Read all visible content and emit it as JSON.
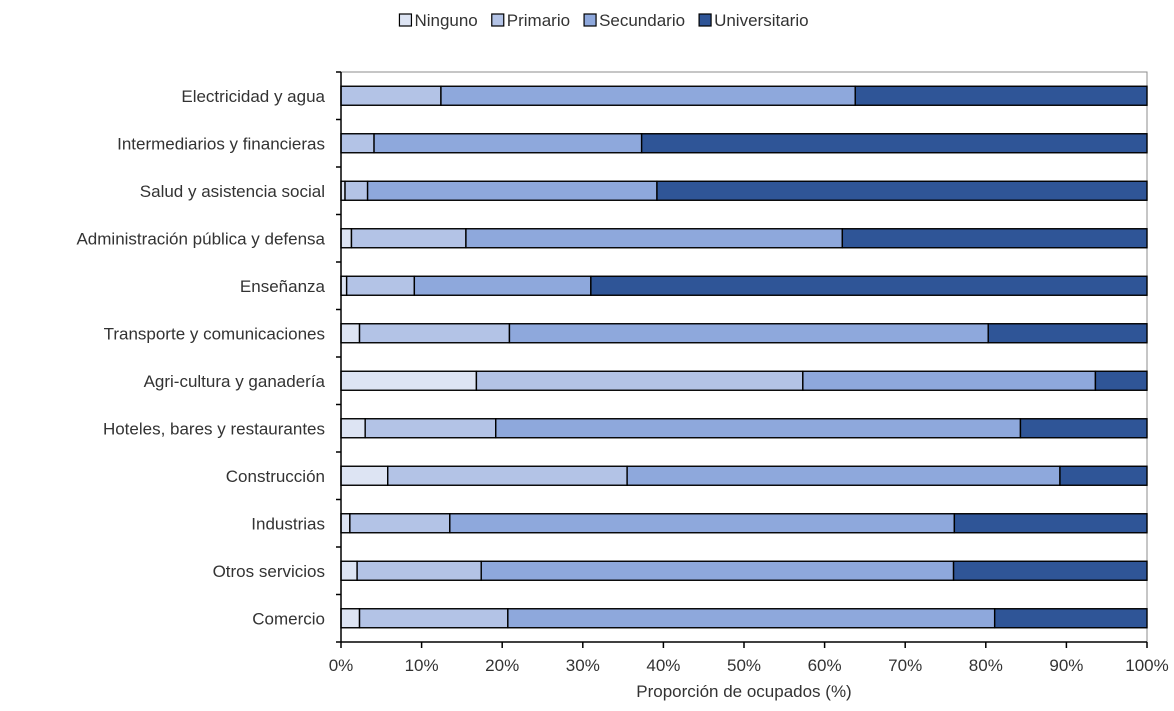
{
  "chart_data": {
    "type": "bar",
    "orientation": "horizontal",
    "stacked": "percent",
    "title": "",
    "xlabel": "Proporción de ocupados (%)",
    "ylabel": "",
    "xlim": [
      0,
      100
    ],
    "xticks": [
      "0%",
      "10%",
      "20%",
      "30%",
      "40%",
      "50%",
      "60%",
      "70%",
      "80%",
      "90%",
      "100%"
    ],
    "legend_position": "top",
    "grid": false,
    "categories": [
      "Electricidad y agua",
      "Intermediarios y financieras",
      "Salud y asistencia social",
      "Administración pública y defensa",
      "Enseñanza",
      "Transporte y comunicaciones",
      "Agri-cultura y ganadería",
      "Hoteles, bares y restaurantes",
      "Construcción",
      "Industrias",
      "Otros servicios",
      "Comercio"
    ],
    "series": [
      {
        "name": "Ninguno",
        "color": "#dde4f3",
        "values": [
          0,
          0,
          0.5,
          1.3,
          0.7,
          2.3,
          16.8,
          3.0,
          5.8,
          1.1,
          2.0,
          2.3
        ]
      },
      {
        "name": "Primario",
        "color": "#b3c3e6",
        "values": [
          12.4,
          4.1,
          2.8,
          14.2,
          8.4,
          18.6,
          40.5,
          16.2,
          29.7,
          12.4,
          15.4,
          18.4
        ]
      },
      {
        "name": "Secundario",
        "color": "#8ea8dc",
        "values": [
          51.4,
          33.2,
          35.9,
          46.7,
          21.9,
          59.4,
          36.3,
          65.1,
          53.7,
          62.6,
          58.6,
          60.4
        ]
      },
      {
        "name": "Universitario",
        "color": "#2f5597",
        "values": [
          36.2,
          62.7,
          60.8,
          37.8,
          69.0,
          19.7,
          6.4,
          15.7,
          10.8,
          23.9,
          24.0,
          18.9
        ]
      }
    ]
  }
}
